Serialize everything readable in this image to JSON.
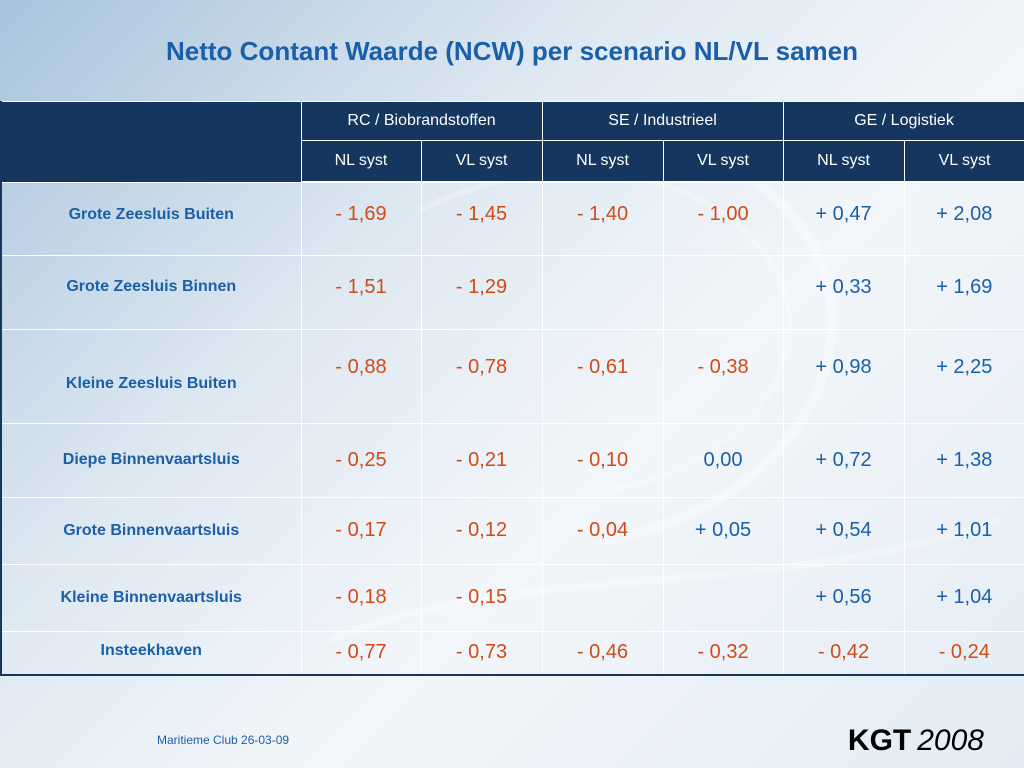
{
  "title": "Netto Contant Waarde (NCW) per scenario NL/VL samen",
  "scenarios": [
    "RC / Biobrandstoffen",
    "SE / Industrieel",
    "GE / Logistiek"
  ],
  "subheaders": [
    "NL syst",
    "VL  syst",
    "NL syst",
    "VL  syst",
    "NL syst",
    "VL  syst"
  ],
  "rows": [
    {
      "label": "Grote Zeesluis Buiten",
      "values": [
        "- 1,69",
        "- 1,45",
        "- 1,40",
        "- 1,00",
        "+ 0,47",
        "+ 2,08"
      ]
    },
    {
      "label": "Grote Zeesluis Binnen",
      "values": [
        "- 1,51",
        "- 1,29",
        "",
        "",
        "+ 0,33",
        "+ 1,69"
      ]
    },
    {
      "label": "Kleine Zeesluis Buiten",
      "values": [
        "- 0,88",
        "- 0,78",
        "- 0,61",
        "- 0,38",
        "+ 0,98",
        "+ 2,25"
      ]
    },
    {
      "label": "Diepe Binnenvaartsluis",
      "values": [
        "- 0,25",
        "- 0,21",
        "- 0,10",
        "0,00",
        "+ 0,72",
        "+ 1,38"
      ]
    },
    {
      "label": "Grote Binnenvaartsluis",
      "values": [
        "- 0,17",
        "- 0,12",
        "- 0,04",
        "+ 0,05",
        "+ 0,54",
        "+ 1,01"
      ]
    },
    {
      "label": "Kleine Binnenvaartsluis",
      "values": [
        "- 0,18",
        "- 0,15",
        "",
        "",
        "+ 0,56",
        "+ 1,04"
      ]
    },
    {
      "label": "Insteekhaven",
      "values": [
        "- 0,77",
        "- 0,73",
        "- 0,46",
        "- 0,32",
        "- 0,42",
        "- 0,24"
      ]
    }
  ],
  "colors": {
    "negative": "#d24a17",
    "positive": "#1a5fa8",
    "header_bg": "#15365f"
  },
  "footer": {
    "date": "Maritieme Club 26-03-09",
    "brand": "KGT",
    "year": "2008"
  }
}
